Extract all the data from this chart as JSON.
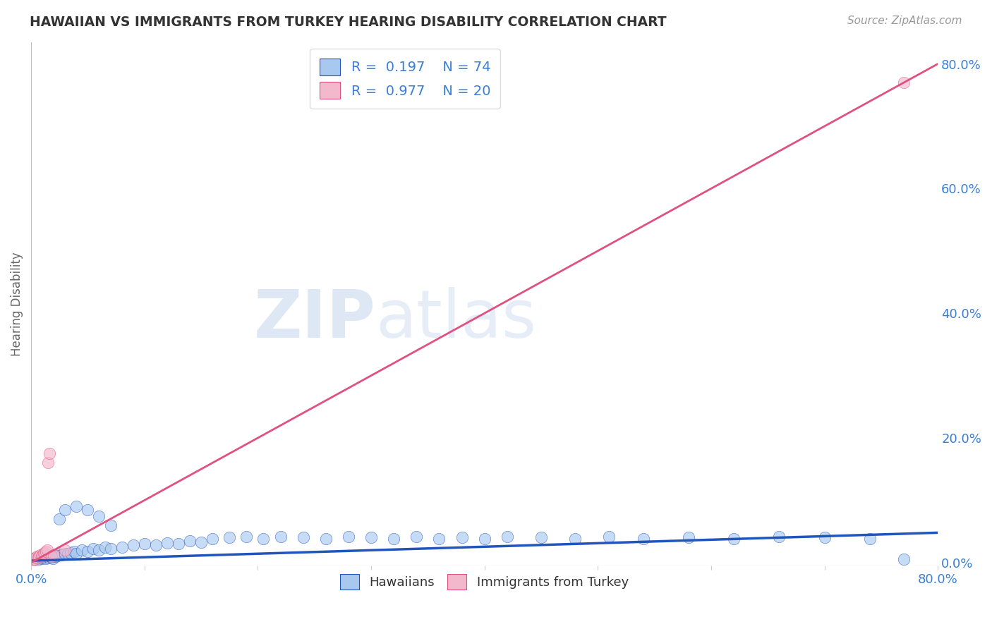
{
  "title": "HAWAIIAN VS IMMIGRANTS FROM TURKEY HEARING DISABILITY CORRELATION CHART",
  "source": "Source: ZipAtlas.com",
  "ylabel": "Hearing Disability",
  "xlim": [
    0.0,
    0.8
  ],
  "ylim": [
    -0.005,
    0.835
  ],
  "hawaiian_color": "#A8C8F0",
  "turkey_color": "#F4B8CC",
  "hawaiian_line_color": "#2255BB",
  "turkey_line_color": "#E05080",
  "background_color": "#FFFFFF",
  "grid_color": "#CCCCCC",
  "watermark_zip": "ZIP",
  "watermark_atlas": "atlas",
  "legend_R_hawaiian": "R =  0.197",
  "legend_N_hawaiian": "N = 74",
  "legend_R_turkey": "R =  0.977",
  "legend_N_turkey": "N = 20",
  "legend_color": "#3A7FD5",
  "hawaiian_x": [
    0.001,
    0.002,
    0.003,
    0.004,
    0.005,
    0.006,
    0.007,
    0.008,
    0.009,
    0.01,
    0.011,
    0.012,
    0.013,
    0.014,
    0.015,
    0.016,
    0.017,
    0.018,
    0.019,
    0.02,
    0.022,
    0.023,
    0.025,
    0.027,
    0.03,
    0.032,
    0.035,
    0.038,
    0.04,
    0.045,
    0.05,
    0.055,
    0.06,
    0.065,
    0.07,
    0.08,
    0.09,
    0.1,
    0.11,
    0.12,
    0.13,
    0.14,
    0.15,
    0.16,
    0.175,
    0.19,
    0.205,
    0.22,
    0.24,
    0.26,
    0.28,
    0.3,
    0.32,
    0.34,
    0.36,
    0.38,
    0.4,
    0.42,
    0.45,
    0.48,
    0.51,
    0.54,
    0.58,
    0.62,
    0.66,
    0.7,
    0.74,
    0.77,
    0.025,
    0.03,
    0.04,
    0.05,
    0.06,
    0.07
  ],
  "hawaiian_y": [
    0.005,
    0.007,
    0.006,
    0.008,
    0.007,
    0.009,
    0.006,
    0.008,
    0.007,
    0.01,
    0.008,
    0.009,
    0.007,
    0.011,
    0.009,
    0.008,
    0.01,
    0.009,
    0.007,
    0.012,
    0.01,
    0.011,
    0.013,
    0.012,
    0.015,
    0.014,
    0.016,
    0.018,
    0.015,
    0.02,
    0.018,
    0.022,
    0.02,
    0.025,
    0.022,
    0.025,
    0.028,
    0.03,
    0.028,
    0.032,
    0.03,
    0.035,
    0.033,
    0.038,
    0.04,
    0.042,
    0.038,
    0.042,
    0.04,
    0.038,
    0.042,
    0.04,
    0.038,
    0.042,
    0.038,
    0.04,
    0.038,
    0.042,
    0.04,
    0.038,
    0.042,
    0.038,
    0.04,
    0.038,
    0.042,
    0.04,
    0.038,
    0.005,
    0.07,
    0.085,
    0.09,
    0.085,
    0.075,
    0.06
  ],
  "turkey_x": [
    0.001,
    0.002,
    0.003,
    0.004,
    0.005,
    0.006,
    0.007,
    0.008,
    0.009,
    0.01,
    0.011,
    0.012,
    0.013,
    0.014,
    0.015,
    0.016,
    0.018,
    0.02,
    0.03,
    0.77
  ],
  "turkey_y": [
    0.003,
    0.005,
    0.006,
    0.008,
    0.01,
    0.008,
    0.01,
    0.012,
    0.01,
    0.012,
    0.014,
    0.016,
    0.018,
    0.02,
    0.16,
    0.175,
    0.01,
    0.012,
    0.02,
    0.77
  ],
  "haw_line_x": [
    0.0,
    0.8
  ],
  "haw_line_y": [
    0.003,
    0.048
  ],
  "turk_line_x": [
    0.0,
    0.8
  ],
  "turk_line_y": [
    0.0,
    0.8
  ]
}
